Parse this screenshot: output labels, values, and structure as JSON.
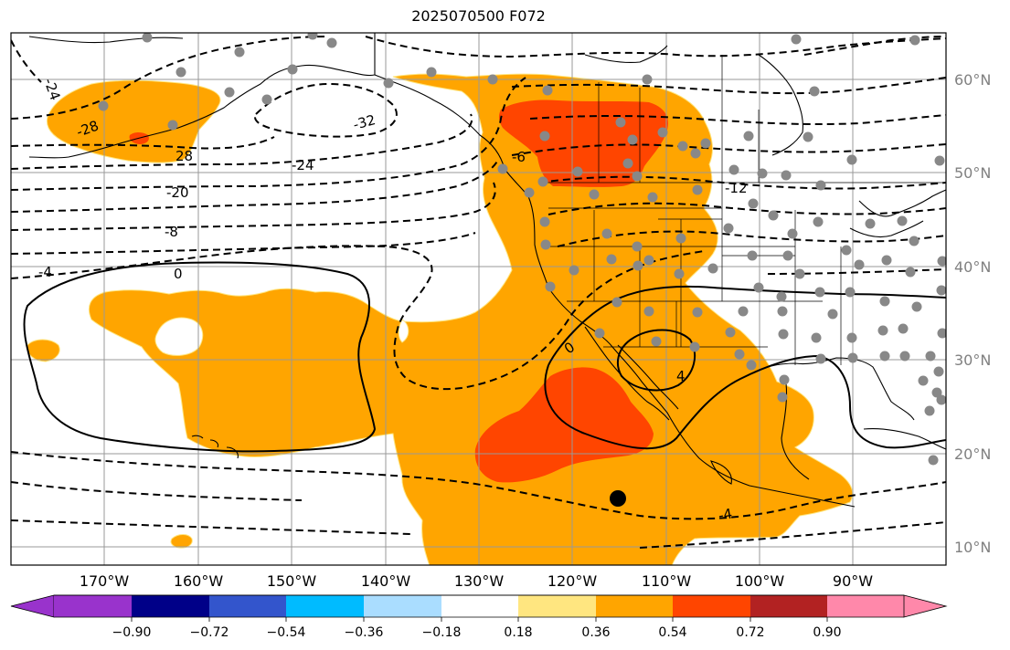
{
  "title": "2025070500 F072",
  "latitude_labels": [
    "60°N",
    "50°N",
    "40°N",
    "30°N",
    "20°N",
    "10°N"
  ],
  "longitude_labels": [
    "170°W",
    "160°W",
    "150°W",
    "140°W",
    "130°W",
    "120°W",
    "110°W",
    "100°W",
    "90°W"
  ],
  "contour_labels": [
    "-24",
    "-28",
    "28",
    "-32",
    "-24",
    "-20",
    "-8",
    "-4",
    "0",
    "-6",
    "-12",
    "0",
    "4",
    "-4"
  ],
  "colorbar": {
    "tick_labels": [
      "−0.90",
      "−0.72",
      "−0.54",
      "−0.36",
      "−0.18",
      "0.18",
      "0.36",
      "0.54",
      "0.72",
      "0.90"
    ],
    "colors": [
      "#9933cc",
      "#9933cc",
      "#000088",
      "#3355cc",
      "#00bbff",
      "#aaddff",
      "#ffffff",
      "#ffe680",
      "#ffa500",
      "#ff4500",
      "#b22222",
      "#ff88aa",
      "#ff88aa"
    ]
  },
  "colors": {
    "orange": "#ffa500",
    "red_orange": "#ff4500",
    "dark_red": "#e02020",
    "grid": "#999999",
    "dots": "#888888"
  }
}
